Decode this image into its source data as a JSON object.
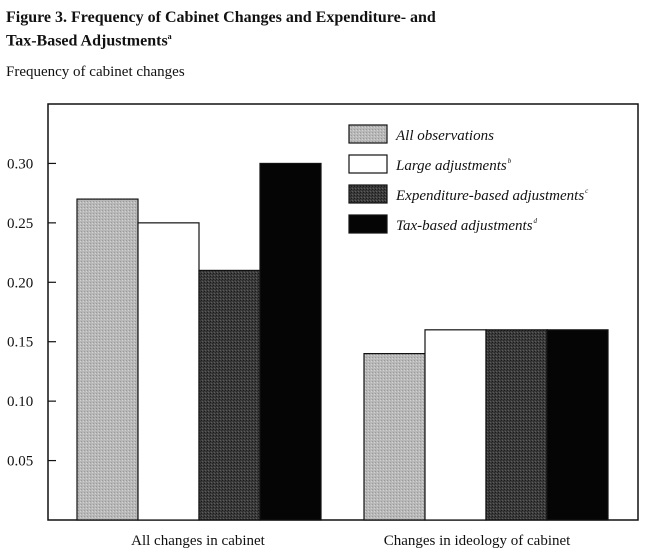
{
  "chart_data": {
    "type": "bar",
    "title": "Figure 3. Frequency of Cabinet Changes and Expenditure- and Tax-Based Adjustments",
    "title_line1": "Figure 3. Frequency of Cabinet Changes and Expenditure- and",
    "title_line2": "Tax-Based Adjustments",
    "title_note": "a",
    "ylabel": "Frequency of cabinet changes",
    "xlabel": "",
    "ylim": [
      0,
      0.35
    ],
    "yticks": [
      "0.05",
      "0.10",
      "0.15",
      "0.20",
      "0.25",
      "0.30"
    ],
    "categories": [
      "All changes in cabinet",
      "Changes in ideology of cabinet"
    ],
    "series": [
      {
        "name": "All observations",
        "note": "",
        "color": "#bdbdbd",
        "pattern": "light",
        "values": [
          0.27,
          0.14
        ]
      },
      {
        "name": "Large adjustments",
        "note": "b",
        "color": "#ffffff",
        "pattern": "none",
        "values": [
          0.25,
          0.16
        ]
      },
      {
        "name": "Expenditure-based adjustments",
        "note": "c",
        "color": "#3a3a3a",
        "pattern": "dark",
        "values": [
          0.21,
          0.16
        ]
      },
      {
        "name": "Tax-based adjustments",
        "note": "d",
        "color": "#050505",
        "pattern": "none",
        "values": [
          0.3,
          0.16
        ]
      }
    ],
    "legend_position": "top-right",
    "grid": false
  }
}
